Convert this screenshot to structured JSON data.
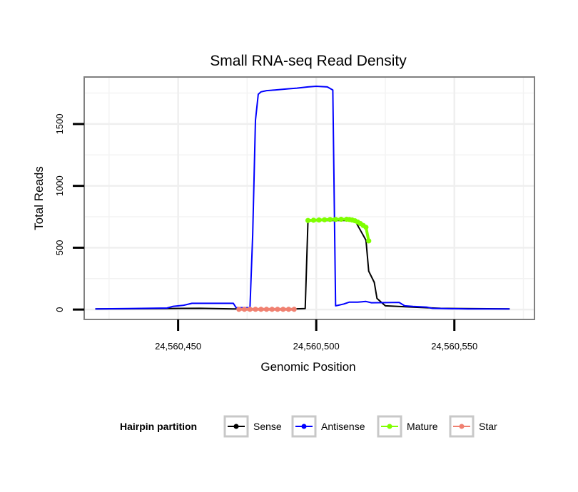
{
  "chart_data": {
    "type": "line",
    "title": "Small RNA-seq Read Density",
    "xlabel": "Genomic Position",
    "ylabel": "Total Reads",
    "xlim": [
      24560416,
      24560579
    ],
    "ylim": [
      -80,
      1880
    ],
    "x_ticks": [
      24560450,
      24560500,
      24560550
    ],
    "x_tick_labels": [
      "24,560,450",
      "24,560,500",
      "24,560,550"
    ],
    "y_ticks": [
      0,
      500,
      1000,
      1500
    ],
    "y_tick_labels": [
      "0",
      "500",
      "1000",
      "1500"
    ],
    "grid": true,
    "legend": {
      "title": "Hairpin partition",
      "position": "bottom",
      "entries": [
        {
          "label": "Sense",
          "color": "#000000"
        },
        {
          "label": "Antisense",
          "color": "#0000ff"
        },
        {
          "label": "Mature",
          "color": "#7fff00"
        },
        {
          "label": "Star",
          "color": "#f08070"
        }
      ]
    },
    "series": [
      {
        "name": "Sense",
        "color": "#000000",
        "markers": false,
        "points": [
          [
            24560420,
            5
          ],
          [
            24560430,
            6
          ],
          [
            24560445,
            8
          ],
          [
            24560458,
            10
          ],
          [
            24560470,
            5
          ],
          [
            24560492,
            5
          ],
          [
            24560496,
            8
          ],
          [
            24560497,
            720
          ],
          [
            24560514,
            720
          ],
          [
            24560518,
            560
          ],
          [
            24560519,
            310
          ],
          [
            24560521,
            220
          ],
          [
            24560522,
            90
          ],
          [
            24560525,
            30
          ],
          [
            24560535,
            20
          ],
          [
            24560545,
            10
          ],
          [
            24560570,
            5
          ]
        ]
      },
      {
        "name": "Antisense",
        "color": "#0000ff",
        "markers": false,
        "points": [
          [
            24560420,
            5
          ],
          [
            24560432,
            8
          ],
          [
            24560446,
            12
          ],
          [
            24560448,
            25
          ],
          [
            24560452,
            35
          ],
          [
            24560455,
            50
          ],
          [
            24560470,
            50
          ],
          [
            24560471,
            15
          ],
          [
            24560476,
            15
          ],
          [
            24560477,
            600
          ],
          [
            24560478,
            1530
          ],
          [
            24560479,
            1740
          ],
          [
            24560480,
            1760
          ],
          [
            24560482,
            1770
          ],
          [
            24560485,
            1775
          ],
          [
            24560490,
            1785
          ],
          [
            24560493,
            1790
          ],
          [
            24560497,
            1800
          ],
          [
            24560500,
            1805
          ],
          [
            24560504,
            1800
          ],
          [
            24560506,
            1775
          ],
          [
            24560507,
            30
          ],
          [
            24560508,
            35
          ],
          [
            24560510,
            45
          ],
          [
            24560512,
            60
          ],
          [
            24560515,
            60
          ],
          [
            24560518,
            65
          ],
          [
            24560520,
            55
          ],
          [
            24560530,
            58
          ],
          [
            24560532,
            30
          ],
          [
            24560535,
            25
          ],
          [
            24560540,
            20
          ],
          [
            24560542,
            10
          ],
          [
            24560555,
            5
          ],
          [
            24560570,
            5
          ]
        ]
      },
      {
        "name": "Mature",
        "color": "#7fff00",
        "markers": true,
        "points": [
          [
            24560497,
            720
          ],
          [
            24560499,
            722
          ],
          [
            24560501,
            724
          ],
          [
            24560503,
            726
          ],
          [
            24560505,
            728
          ],
          [
            24560507,
            729
          ],
          [
            24560509,
            730
          ],
          [
            24560511,
            730
          ],
          [
            24560512,
            728
          ],
          [
            24560513,
            724
          ],
          [
            24560514,
            718
          ],
          [
            24560515,
            708
          ],
          [
            24560516,
            695
          ],
          [
            24560517,
            680
          ],
          [
            24560518,
            665
          ],
          [
            24560519,
            555
          ]
        ]
      },
      {
        "name": "Star",
        "color": "#f08070",
        "markers": true,
        "points": [
          [
            24560472,
            2
          ],
          [
            24560474,
            2
          ],
          [
            24560476,
            2
          ],
          [
            24560478,
            2
          ],
          [
            24560480,
            2
          ],
          [
            24560482,
            2
          ],
          [
            24560484,
            2
          ],
          [
            24560486,
            2
          ],
          [
            24560488,
            2
          ],
          [
            24560490,
            2
          ],
          [
            24560492,
            2
          ]
        ]
      }
    ]
  }
}
